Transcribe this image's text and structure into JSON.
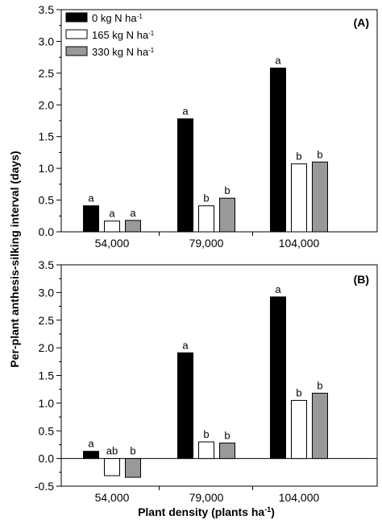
{
  "figure": {
    "ylabel": "Per-plant anthesis-silking interval (days)",
    "xlabel_main": "Plant density (plants ha",
    "xlabel_sup": "-1",
    "xlabel_end": ")"
  },
  "legend": [
    {
      "text": "0 kg N ha",
      "sup": "-1",
      "color": "#000000"
    },
    {
      "text": "165 kg N ha",
      "sup": "-1",
      "color": "#ffffff"
    },
    {
      "text": "330 kg N ha",
      "sup": "-1",
      "color": "#999999"
    }
  ],
  "chart_data": [
    {
      "type": "bar",
      "panel_label": "(A)",
      "categories": [
        "54,000",
        "79,000",
        "104,000"
      ],
      "ylim": [
        0,
        3.5
      ],
      "yticks": [
        "0.0",
        "0.5",
        "1.0",
        "1.5",
        "2.0",
        "2.5",
        "3.0",
        "3.5"
      ],
      "series": [
        {
          "name": "0 kg N ha-1",
          "color": "#000000",
          "values": [
            0.41,
            1.78,
            2.58
          ],
          "letters": [
            "a",
            "a",
            "a"
          ]
        },
        {
          "name": "165 kg N ha-1",
          "color": "#ffffff",
          "values": [
            0.17,
            0.41,
            1.07
          ],
          "letters": [
            "a",
            "b",
            "b"
          ]
        },
        {
          "name": "330 kg N ha-1",
          "color": "#999999",
          "values": [
            0.18,
            0.53,
            1.1
          ],
          "letters": [
            "a",
            "b",
            "b"
          ]
        }
      ]
    },
    {
      "type": "bar",
      "panel_label": "(B)",
      "categories": [
        "54,000",
        "79,000",
        "104,000"
      ],
      "ylim": [
        -0.5,
        3.5
      ],
      "yticks": [
        "-0.5",
        "0.0",
        "0.5",
        "1.0",
        "1.5",
        "2.0",
        "2.5",
        "3.0",
        "3.5"
      ],
      "series": [
        {
          "name": "0 kg N ha-1",
          "color": "#000000",
          "values": [
            0.13,
            1.91,
            2.92
          ],
          "letters": [
            "a",
            "a",
            "a"
          ]
        },
        {
          "name": "165 kg N ha-1",
          "color": "#ffffff",
          "values": [
            -0.31,
            0.3,
            1.05
          ],
          "letters": [
            "ab",
            "b",
            "b"
          ]
        },
        {
          "name": "330 kg N ha-1",
          "color": "#999999",
          "values": [
            -0.34,
            0.28,
            1.18
          ],
          "letters": [
            "b",
            "b",
            "b"
          ]
        }
      ]
    }
  ]
}
